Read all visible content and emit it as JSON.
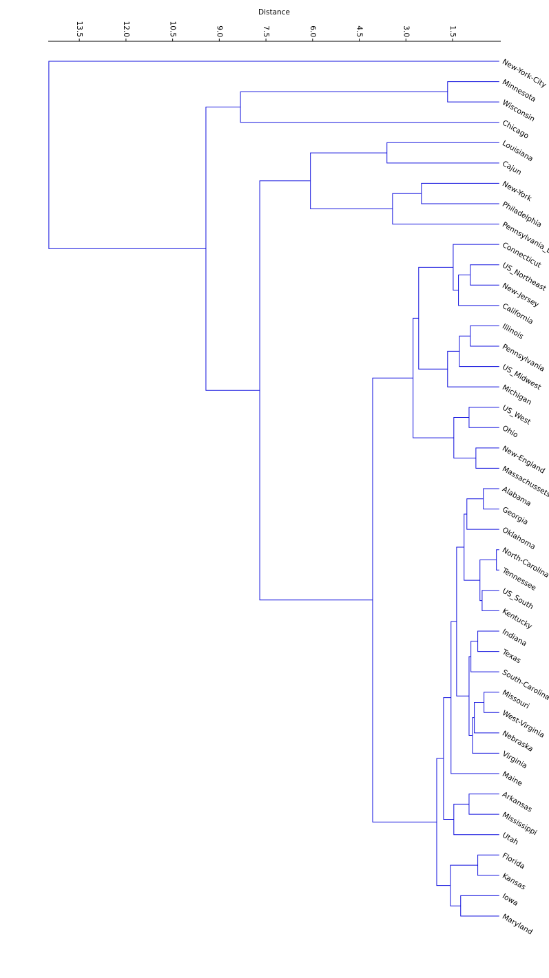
{
  "chart_data": {
    "type": "dendrogram",
    "title": "Distance",
    "color": "#1010dd",
    "xlim": [
      -0.05,
      14.5
    ],
    "xticks": [
      13.5,
      {
        "value": 12,
        "label": "12.0"
      },
      10.5,
      {
        "value": 9,
        "label": "9.0"
      },
      7.5,
      {
        "value": 6,
        "label": "6.0"
      },
      4.5,
      {
        "value": 3,
        "label": "3.0"
      },
      1.5
    ],
    "labels": [
      "New-York-City",
      "Minnesota",
      "Wisconsin",
      "Chicago",
      "Louisiana",
      "Cajun",
      "New-York",
      "Philadelphia",
      "Pennsylvania_Du",
      "Connecticut",
      "US_Northeast",
      "New-Jersey",
      "California",
      "Illinois",
      "Pennsylvania",
      "US_Midwest",
      "Michigan",
      "US_West",
      "Ohio",
      "New-England",
      "Massachussets",
      "Alabama",
      "Georgia",
      "Oklahoma",
      "North-Carolina",
      "Tennessee",
      "US_South",
      "Kentucky",
      "Indiana",
      "Texas",
      "South-Carolina",
      "Missouri",
      "West-Virginia",
      "Nebraska",
      "Virginia",
      "Maine",
      "Arkansas",
      "Mississippi",
      "Utah",
      "Florida",
      "Kansas",
      "Iowa",
      "Maryland"
    ],
    "merges": [
      [
        1,
        2,
        1.66
      ],
      [
        43,
        3,
        8.32
      ],
      [
        4,
        5,
        3.61
      ],
      [
        6,
        7,
        2.5
      ],
      [
        46,
        8,
        3.43
      ],
      [
        45,
        47,
        6.07
      ],
      [
        10,
        11,
        0.93
      ],
      [
        49,
        12,
        1.31
      ],
      [
        9,
        50,
        1.48
      ],
      [
        13,
        14,
        0.93
      ],
      [
        52,
        15,
        1.28
      ],
      [
        53,
        16,
        1.66
      ],
      [
        51,
        54,
        2.59
      ],
      [
        17,
        18,
        0.97
      ],
      [
        19,
        20,
        0.75
      ],
      [
        56,
        57,
        1.46
      ],
      [
        55,
        58,
        2.77
      ],
      [
        21,
        22,
        0.51
      ],
      [
        60,
        23,
        1.04
      ],
      [
        24,
        25,
        0.09
      ],
      [
        26,
        27,
        0.55
      ],
      [
        62,
        63,
        0.62
      ],
      [
        61,
        64,
        1.13
      ],
      [
        28,
        29,
        0.69
      ],
      [
        66,
        30,
        0.91
      ],
      [
        31,
        32,
        0.49
      ],
      [
        68,
        33,
        0.8
      ],
      [
        69,
        34,
        0.86
      ],
      [
        67,
        70,
        0.97
      ],
      [
        65,
        71,
        1.37
      ],
      [
        72,
        35,
        1.55
      ],
      [
        36,
        37,
        0.97
      ],
      [
        74,
        38,
        1.46
      ],
      [
        73,
        75,
        1.79
      ],
      [
        39,
        40,
        0.69
      ],
      [
        41,
        42,
        1.24
      ],
      [
        77,
        78,
        1.57
      ],
      [
        76,
        79,
        2.01
      ],
      [
        59,
        80,
        4.07
      ],
      [
        48,
        81,
        7.7
      ],
      [
        44,
        82,
        9.43
      ],
      [
        0,
        83,
        14.48
      ]
    ]
  }
}
